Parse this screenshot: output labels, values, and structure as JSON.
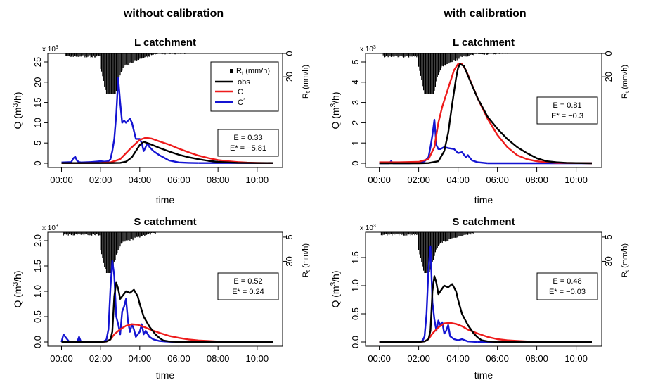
{
  "columns": [
    "without calibration",
    "with calibration"
  ],
  "common": {
    "xlabel": "time",
    "ylabel_left_parts": {
      "pre": "Q (m",
      "sup": "3",
      "post": "/h)"
    },
    "ylabel_right_parts": {
      "base": "R",
      "sub": "t",
      "post": " (mm/h)"
    },
    "multiplier_parts": {
      "base": "x 10",
      "sup": "3"
    },
    "x_ticks": [
      "00:00",
      "02:00",
      "04:00",
      "06:00",
      "08:00",
      "10:00"
    ],
    "x_tick_hours": [
      0,
      2,
      4,
      6,
      8,
      10
    ],
    "legend": {
      "rain_parts": {
        "base": "R",
        "sub": "t",
        "post": " (mm/h)"
      },
      "obs": "obs",
      "C": "C",
      "Cstar_parts": {
        "base": "C",
        "sup": "*"
      }
    },
    "colors": {
      "obs": "#000000",
      "C": "#ee1c1c",
      "Cstar": "#1414d2",
      "rain": "#000000"
    }
  },
  "chart_data": [
    {
      "type": "line",
      "title": "L catchment",
      "column": "without calibration",
      "xlabel": "time",
      "ylim": [
        0,
        25
      ],
      "yticks": [
        0,
        5,
        10,
        15,
        20,
        25
      ],
      "rain_ticks": [
        0,
        20
      ],
      "stats": {
        "E": "E = 0.33",
        "Estar": "E* = −5.81"
      },
      "legend": "top-right",
      "series": [
        {
          "name": "obs",
          "x": [
            0,
            1,
            2,
            2.5,
            3,
            3.3,
            3.6,
            3.8,
            4,
            4.2,
            4.5,
            5,
            5.5,
            6,
            6.5,
            7,
            7.5,
            8,
            9,
            10,
            10.8
          ],
          "y": [
            0.05,
            0.05,
            0.05,
            0.05,
            0.1,
            0.4,
            1.5,
            3,
            4.5,
            5.3,
            4.8,
            3.8,
            2.9,
            2.1,
            1.5,
            1,
            0.6,
            0.35,
            0.1,
            0.05,
            0.05
          ]
        },
        {
          "name": "C",
          "x": [
            0,
            1,
            2,
            2.5,
            3,
            3.5,
            4,
            4.3,
            4.6,
            5,
            5.5,
            6,
            6.5,
            7,
            7.5,
            8,
            8.5,
            9,
            9.5,
            10,
            10.8
          ],
          "y": [
            0.05,
            0.05,
            0.1,
            0.2,
            1,
            3.5,
            5.8,
            6.3,
            6.1,
            5.4,
            4.6,
            3.6,
            2.7,
            1.9,
            1.3,
            0.8,
            0.5,
            0.3,
            0.15,
            0.08,
            0.05
          ]
        },
        {
          "name": "C*",
          "x": [
            0,
            0.5,
            0.6,
            0.7,
            0.8,
            0.9,
            1,
            1.5,
            2,
            2.2,
            2.4,
            2.5,
            2.6,
            2.7,
            2.8,
            2.9,
            3,
            3.1,
            3.2,
            3.3,
            3.5,
            3.6,
            3.8,
            4,
            4.1,
            4.2,
            4.3,
            4.4,
            4.5,
            4.7,
            5,
            5.2,
            5.5,
            5.8,
            6,
            6.5,
            7
          ],
          "y": [
            0.2,
            0.3,
            1.2,
            1.6,
            0.6,
            0.3,
            0.2,
            0.3,
            0.5,
            0.4,
            0.5,
            1,
            3,
            6,
            12,
            21,
            15,
            10,
            10.5,
            10,
            11,
            10,
            6,
            6,
            5,
            3,
            4,
            5,
            4,
            3,
            2,
            1.5,
            0.7,
            0.4,
            0.2,
            0.1,
            0.05
          ]
        }
      ],
      "rain": {
        "start": 0.2,
        "end": 6.5,
        "peak_at": 2.5,
        "peak_mmh": 40,
        "ylim": [
          0,
          35
        ]
      }
    },
    {
      "type": "line",
      "title": "L catchment",
      "column": "with calibration",
      "xlabel": "time",
      "ylim": [
        0,
        5
      ],
      "yticks": [
        0,
        1,
        2,
        3,
        4,
        5
      ],
      "rain_ticks": [
        0,
        20
      ],
      "stats": {
        "E": "E = 0.81",
        "Estar": "E* = −0.3"
      },
      "legend": "",
      "series": [
        {
          "name": "obs",
          "x": [
            0,
            1,
            2,
            2.5,
            3,
            3.3,
            3.5,
            3.7,
            3.9,
            4,
            4.1,
            4.3,
            4.6,
            5,
            5.5,
            6,
            6.5,
            7,
            7.5,
            8,
            8.5,
            9,
            9.5,
            10,
            10.8
          ],
          "y": [
            0,
            0,
            0,
            0.01,
            0.1,
            0.6,
            1.5,
            2.9,
            4.2,
            4.7,
            4.9,
            4.8,
            4.1,
            3.2,
            2.3,
            1.7,
            1.2,
            0.8,
            0.5,
            0.25,
            0.1,
            0.05,
            0.02,
            0.01,
            0
          ]
        },
        {
          "name": "C",
          "x": [
            0,
            1,
            2,
            2.5,
            2.8,
            3,
            3.2,
            3.4,
            3.6,
            3.8,
            4,
            4.2,
            4.4,
            4.7,
            5,
            5.5,
            6,
            6.5,
            7,
            7.5,
            8,
            8.5,
            9,
            10,
            10.8
          ],
          "y": [
            0.05,
            0.05,
            0.07,
            0.2,
            0.8,
            2,
            2.8,
            3.4,
            4,
            4.6,
            4.9,
            4.9,
            4.6,
            3.9,
            3.2,
            2.2,
            1.4,
            0.8,
            0.4,
            0.2,
            0.1,
            0.05,
            0.02,
            0.01,
            0
          ]
        },
        {
          "name": "C*",
          "x": [
            0,
            0.5,
            0.6,
            0.7,
            1,
            1.5,
            2,
            2.3,
            2.5,
            2.6,
            2.7,
            2.8,
            2.9,
            3,
            3.1,
            3.3,
            3.5,
            3.8,
            4,
            4.2,
            4.4,
            4.5,
            4.7,
            5,
            5.5
          ],
          "y": [
            0,
            0,
            0.1,
            0,
            0,
            0,
            0.02,
            0.1,
            0.3,
            0.8,
            1.4,
            2.15,
            0.9,
            0.7,
            0.7,
            0.8,
            0.75,
            0.7,
            0.5,
            0.55,
            0.3,
            0.4,
            0.15,
            0.05,
            0
          ]
        }
      ],
      "rain": {
        "start": 0.2,
        "end": 6.5,
        "peak_at": 2.5,
        "peak_mmh": 40,
        "ylim": [
          0,
          35
        ]
      }
    },
    {
      "type": "line",
      "title": "S catchment",
      "column": "without calibration",
      "xlabel": "time",
      "ylim": [
        0,
        2
      ],
      "yticks": [
        0,
        0.5,
        1,
        1.5,
        2
      ],
      "ytick_labels": [
        "0.0",
        "0.5",
        "1.0",
        "1.5",
        "2.0"
      ],
      "rain_ticks": [
        5,
        30
      ],
      "stats": {
        "E": "E = 0.52",
        "Estar": "E* = 0.24"
      },
      "legend": "",
      "series": [
        {
          "name": "obs",
          "x": [
            0,
            1,
            2,
            2.3,
            2.5,
            2.6,
            2.7,
            2.8,
            2.9,
            3,
            3.1,
            3.3,
            3.5,
            3.7,
            3.9,
            4,
            4.2,
            4.5,
            4.8,
            5,
            5.2,
            5.5,
            6
          ],
          "y": [
            0,
            0,
            0,
            0.01,
            0.05,
            0.2,
            0.9,
            1.17,
            1.05,
            0.85,
            0.9,
            1,
            0.97,
            1.03,
            0.9,
            0.75,
            0.5,
            0.3,
            0.15,
            0.08,
            0.03,
            0.01,
            0
          ]
        },
        {
          "name": "C",
          "x": [
            0,
            1,
            2,
            2.3,
            2.5,
            2.7,
            3,
            3.3,
            3.6,
            3.9,
            4.2,
            4.5,
            5,
            5.5,
            6,
            6.5,
            7,
            7.5,
            8,
            9,
            10,
            10.8
          ],
          "y": [
            0,
            0,
            0,
            0.01,
            0.05,
            0.15,
            0.25,
            0.32,
            0.35,
            0.34,
            0.3,
            0.25,
            0.18,
            0.12,
            0.08,
            0.05,
            0.03,
            0.02,
            0.01,
            0.005,
            0,
            0
          ]
        },
        {
          "name": "C*",
          "x": [
            0,
            0.1,
            0.2,
            0.4,
            0.8,
            0.9,
            1,
            1.3,
            1.6,
            1.9,
            2.1,
            2.2,
            2.3,
            2.4,
            2.5,
            2.6,
            2.7,
            2.8,
            2.9,
            3,
            3.1,
            3.2,
            3.3,
            3.4,
            3.5,
            3.6,
            3.7,
            3.8,
            4,
            4.1,
            4.2,
            4.3,
            4.5,
            4.7,
            5,
            5.3,
            5.8
          ],
          "y": [
            0,
            0.15,
            0.1,
            0,
            0,
            0.1,
            0,
            0,
            0,
            0,
            0,
            0.02,
            0.05,
            0.25,
            1.05,
            1.6,
            1.3,
            0.5,
            0.35,
            0.15,
            0.6,
            0.7,
            0.85,
            0.4,
            0.2,
            0.35,
            0.25,
            0.1,
            0.2,
            0.35,
            0.15,
            0.22,
            0.1,
            0.05,
            0.02,
            0.01,
            0
          ]
        }
      ],
      "rain": {
        "start": 0.1,
        "end": 4.8,
        "peak_at": 2.4,
        "peak_mmh": 40,
        "ylim": [
          0,
          42
        ]
      }
    },
    {
      "type": "line",
      "title": "S catchment",
      "column": "with calibration",
      "xlabel": "time",
      "ylim": [
        0,
        1.8
      ],
      "yticks": [
        0,
        0.5,
        1,
        1.5
      ],
      "ytick_labels": [
        "0.0",
        "0.5",
        "1.0",
        "1.5"
      ],
      "rain_ticks": [
        5,
        30
      ],
      "stats": {
        "E": "E = 0.48",
        "Estar": "E* = −0.03"
      },
      "legend": "",
      "series": [
        {
          "name": "obs",
          "x": [
            0,
            1,
            2,
            2.3,
            2.5,
            2.6,
            2.7,
            2.8,
            2.9,
            3,
            3.1,
            3.3,
            3.5,
            3.7,
            3.9,
            4,
            4.2,
            4.5,
            4.8,
            5,
            5.2,
            5.5,
            6
          ],
          "y": [
            0,
            0,
            0,
            0.01,
            0.05,
            0.2,
            0.9,
            1.17,
            1.05,
            0.85,
            0.9,
            1,
            0.97,
            1.03,
            0.9,
            0.75,
            0.5,
            0.3,
            0.15,
            0.08,
            0.03,
            0.01,
            0
          ]
        },
        {
          "name": "C",
          "x": [
            0,
            1,
            2,
            2.3,
            2.5,
            2.7,
            3,
            3.3,
            3.6,
            3.9,
            4.2,
            4.5,
            5,
            5.5,
            6,
            6.5,
            7,
            7.5,
            8,
            9,
            10,
            10.8
          ],
          "y": [
            0,
            0,
            0,
            0.01,
            0.05,
            0.15,
            0.26,
            0.33,
            0.34,
            0.32,
            0.28,
            0.22,
            0.15,
            0.09,
            0.05,
            0.03,
            0.02,
            0.01,
            0.005,
            0,
            0,
            0
          ]
        },
        {
          "name": "C*",
          "x": [
            0,
            0.5,
            1,
            1.5,
            2,
            2.2,
            2.3,
            2.4,
            2.5,
            2.6,
            2.7,
            2.8,
            2.9,
            3,
            3.1,
            3.2,
            3.3,
            3.4,
            3.5,
            3.6,
            3.8,
            4,
            4.2,
            4.5,
            5
          ],
          "y": [
            0,
            0,
            0,
            0,
            0,
            0.02,
            0.1,
            0.5,
            1.3,
            1.7,
            0.7,
            0.4,
            0.2,
            0.38,
            0.3,
            0.35,
            0.15,
            0.2,
            0.3,
            0.1,
            0.05,
            0.03,
            0.05,
            0.01,
            0
          ]
        }
      ],
      "rain": {
        "start": 0.1,
        "end": 4.8,
        "peak_at": 2.4,
        "peak_mmh": 40,
        "ylim": [
          0,
          42
        ]
      }
    }
  ]
}
